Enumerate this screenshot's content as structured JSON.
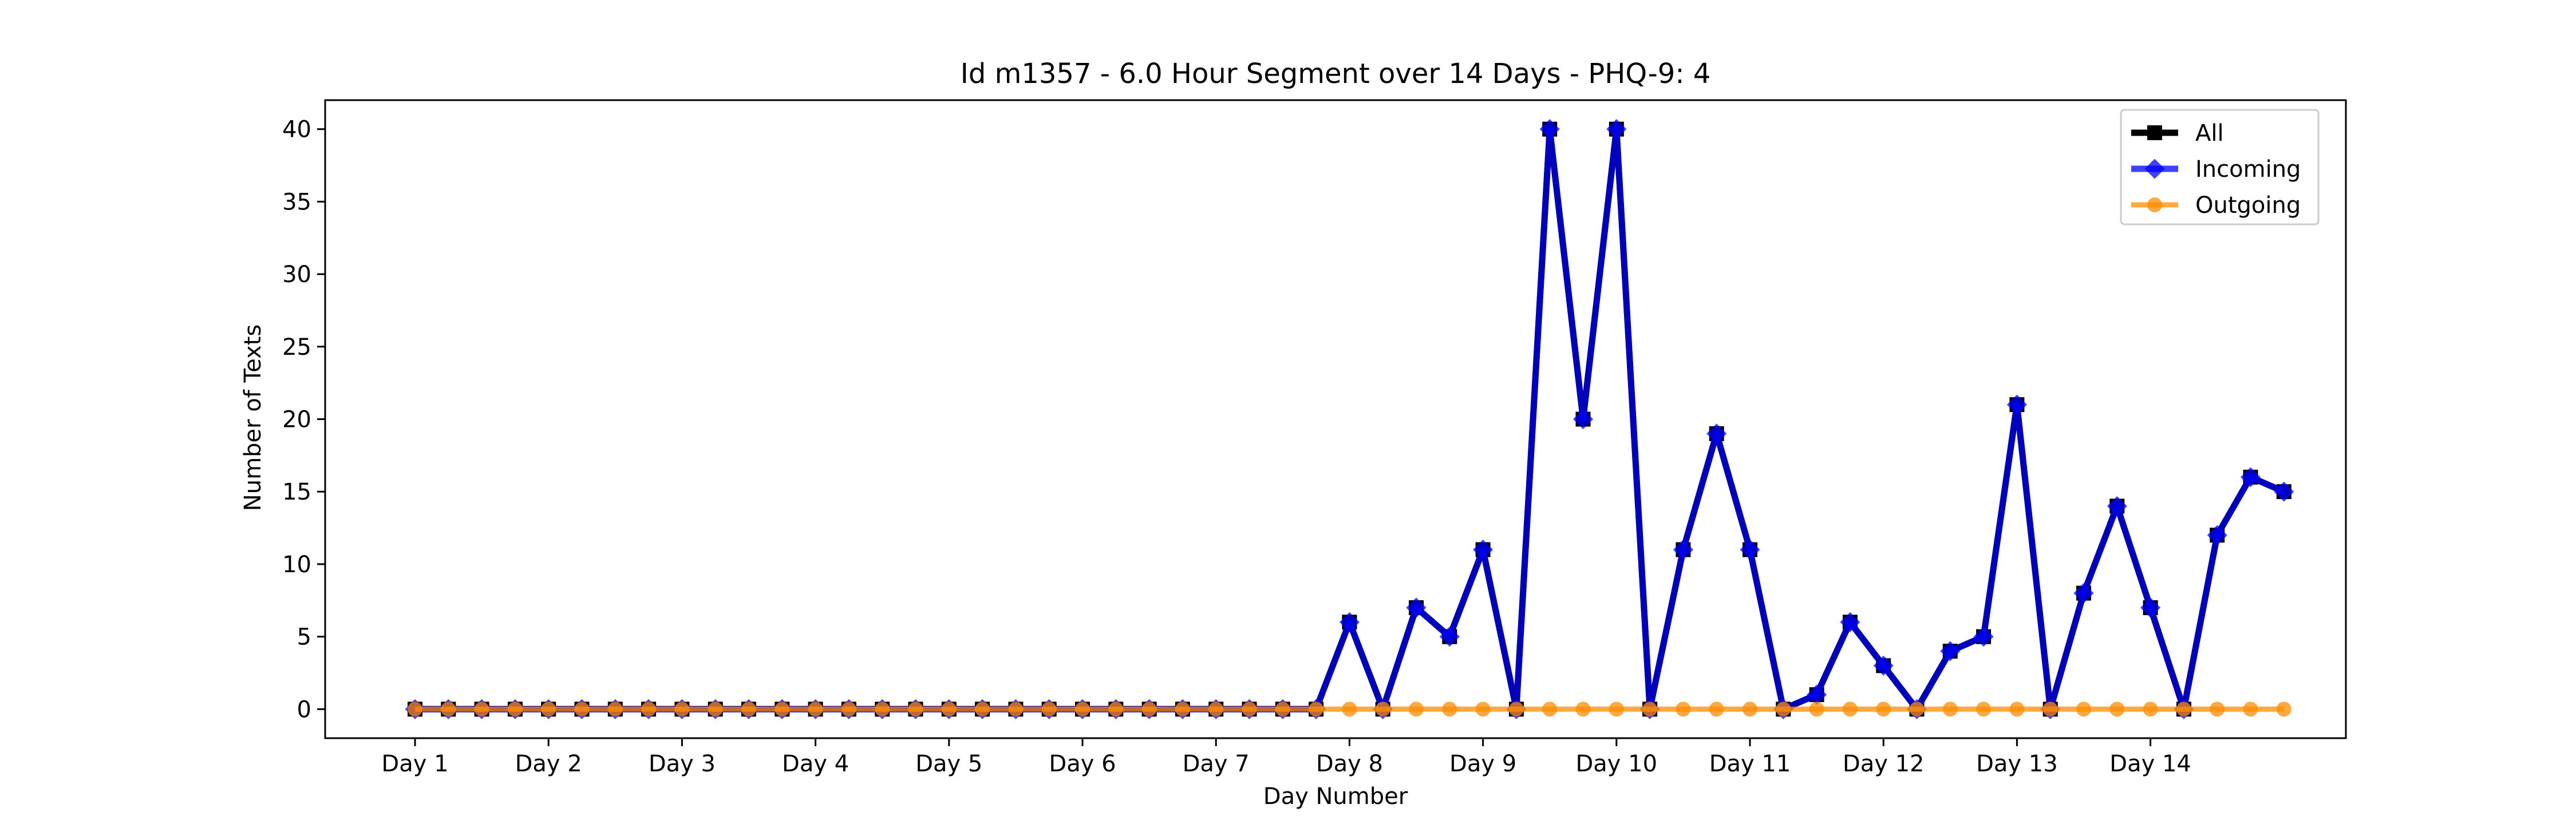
{
  "chart_data": {
    "type": "line",
    "title": "Id m1357 - 6.0 Hour Segment over 14 Days - PHQ-9: 4",
    "xlabel": "Day Number",
    "ylabel": "Number of Texts",
    "ylim": [
      -2,
      42
    ],
    "yticks": [
      0,
      5,
      10,
      15,
      20,
      25,
      30,
      35,
      40
    ],
    "x_tick_labels": [
      "Day 1",
      "Day 2",
      "Day 3",
      "Day 4",
      "Day 5",
      "Day 6",
      "Day 7",
      "Day 8",
      "Day 9",
      "Day 10",
      "Day 11",
      "Day 12",
      "Day 13",
      "Day 14"
    ],
    "grid": false,
    "legend_position": "top-right",
    "series": [
      {
        "name": "All",
        "color": "#000000",
        "marker": "square",
        "values": [
          0,
          0,
          0,
          0,
          0,
          0,
          0,
          0,
          0,
          0,
          0,
          0,
          0,
          0,
          0,
          0,
          0,
          0,
          0,
          0,
          0,
          0,
          0,
          0,
          0,
          0,
          0,
          0,
          6,
          0,
          7,
          5,
          11,
          0,
          40,
          20,
          40,
          0,
          11,
          19,
          11,
          0,
          1,
          6,
          3,
          0,
          4,
          5,
          21,
          0,
          8,
          14,
          7,
          0,
          12,
          16,
          15
        ]
      },
      {
        "name": "Incoming",
        "color": "#0000ff",
        "marker": "diamond",
        "values": [
          0,
          0,
          0,
          0,
          0,
          0,
          0,
          0,
          0,
          0,
          0,
          0,
          0,
          0,
          0,
          0,
          0,
          0,
          0,
          0,
          0,
          0,
          0,
          0,
          0,
          0,
          0,
          0,
          6,
          0,
          7,
          5,
          11,
          0,
          40,
          20,
          40,
          0,
          11,
          19,
          11,
          0,
          1,
          6,
          3,
          0,
          4,
          5,
          21,
          0,
          8,
          14,
          7,
          0,
          12,
          16,
          15
        ]
      },
      {
        "name": "Outgoing",
        "color": "#ff8c00",
        "marker": "circle",
        "values": [
          0,
          0,
          0,
          0,
          0,
          0,
          0,
          0,
          0,
          0,
          0,
          0,
          0,
          0,
          0,
          0,
          0,
          0,
          0,
          0,
          0,
          0,
          0,
          0,
          0,
          0,
          0,
          0,
          0,
          0,
          0,
          0,
          0,
          0,
          0,
          0,
          0,
          0,
          0,
          0,
          0,
          0,
          0,
          0,
          0,
          0,
          0,
          0,
          0,
          0,
          0,
          0,
          0,
          0,
          0,
          0,
          0
        ]
      }
    ]
  }
}
